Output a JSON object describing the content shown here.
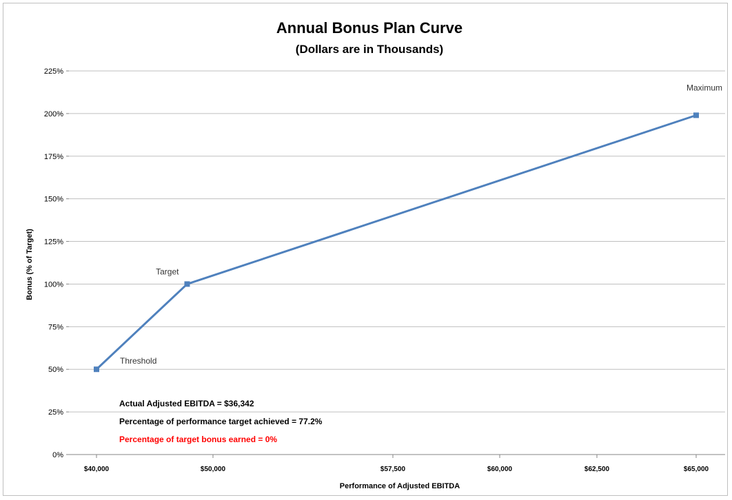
{
  "chart_data": {
    "type": "line",
    "title": "Annual Bonus Plan Curve",
    "subtitle": "(Dollars are in Thousands)",
    "xlabel": "Performance of Adjusted EBITDA",
    "ylabel": "Bonus (% of Target)",
    "x_categories": [
      "$40,000",
      "$50,000",
      "$57,500",
      "$60,000",
      "$62,500",
      "$65,000"
    ],
    "y_ticks": [
      "0%",
      "25%",
      "50%",
      "75%",
      "100%",
      "125%",
      "150%",
      "175%",
      "200%",
      "225%"
    ],
    "ylim": [
      0,
      225
    ],
    "grid": true,
    "series": [
      {
        "color": "#4f81bd",
        "x": [
          40,
          47.78,
          65
        ],
        "y": [
          50,
          100,
          199
        ]
      }
    ],
    "point_labels": [
      "Threshold",
      "Target",
      "Maximum"
    ],
    "annotations": [
      {
        "text": "Actual Adjusted EBITDA = $36,342",
        "color": "#000000"
      },
      {
        "text": "Percentage of performance target achieved = 77.2%",
        "color": "#000000"
      },
      {
        "text": "Percentage of target bonus earned = 0%",
        "color": "#ff0000"
      }
    ]
  }
}
